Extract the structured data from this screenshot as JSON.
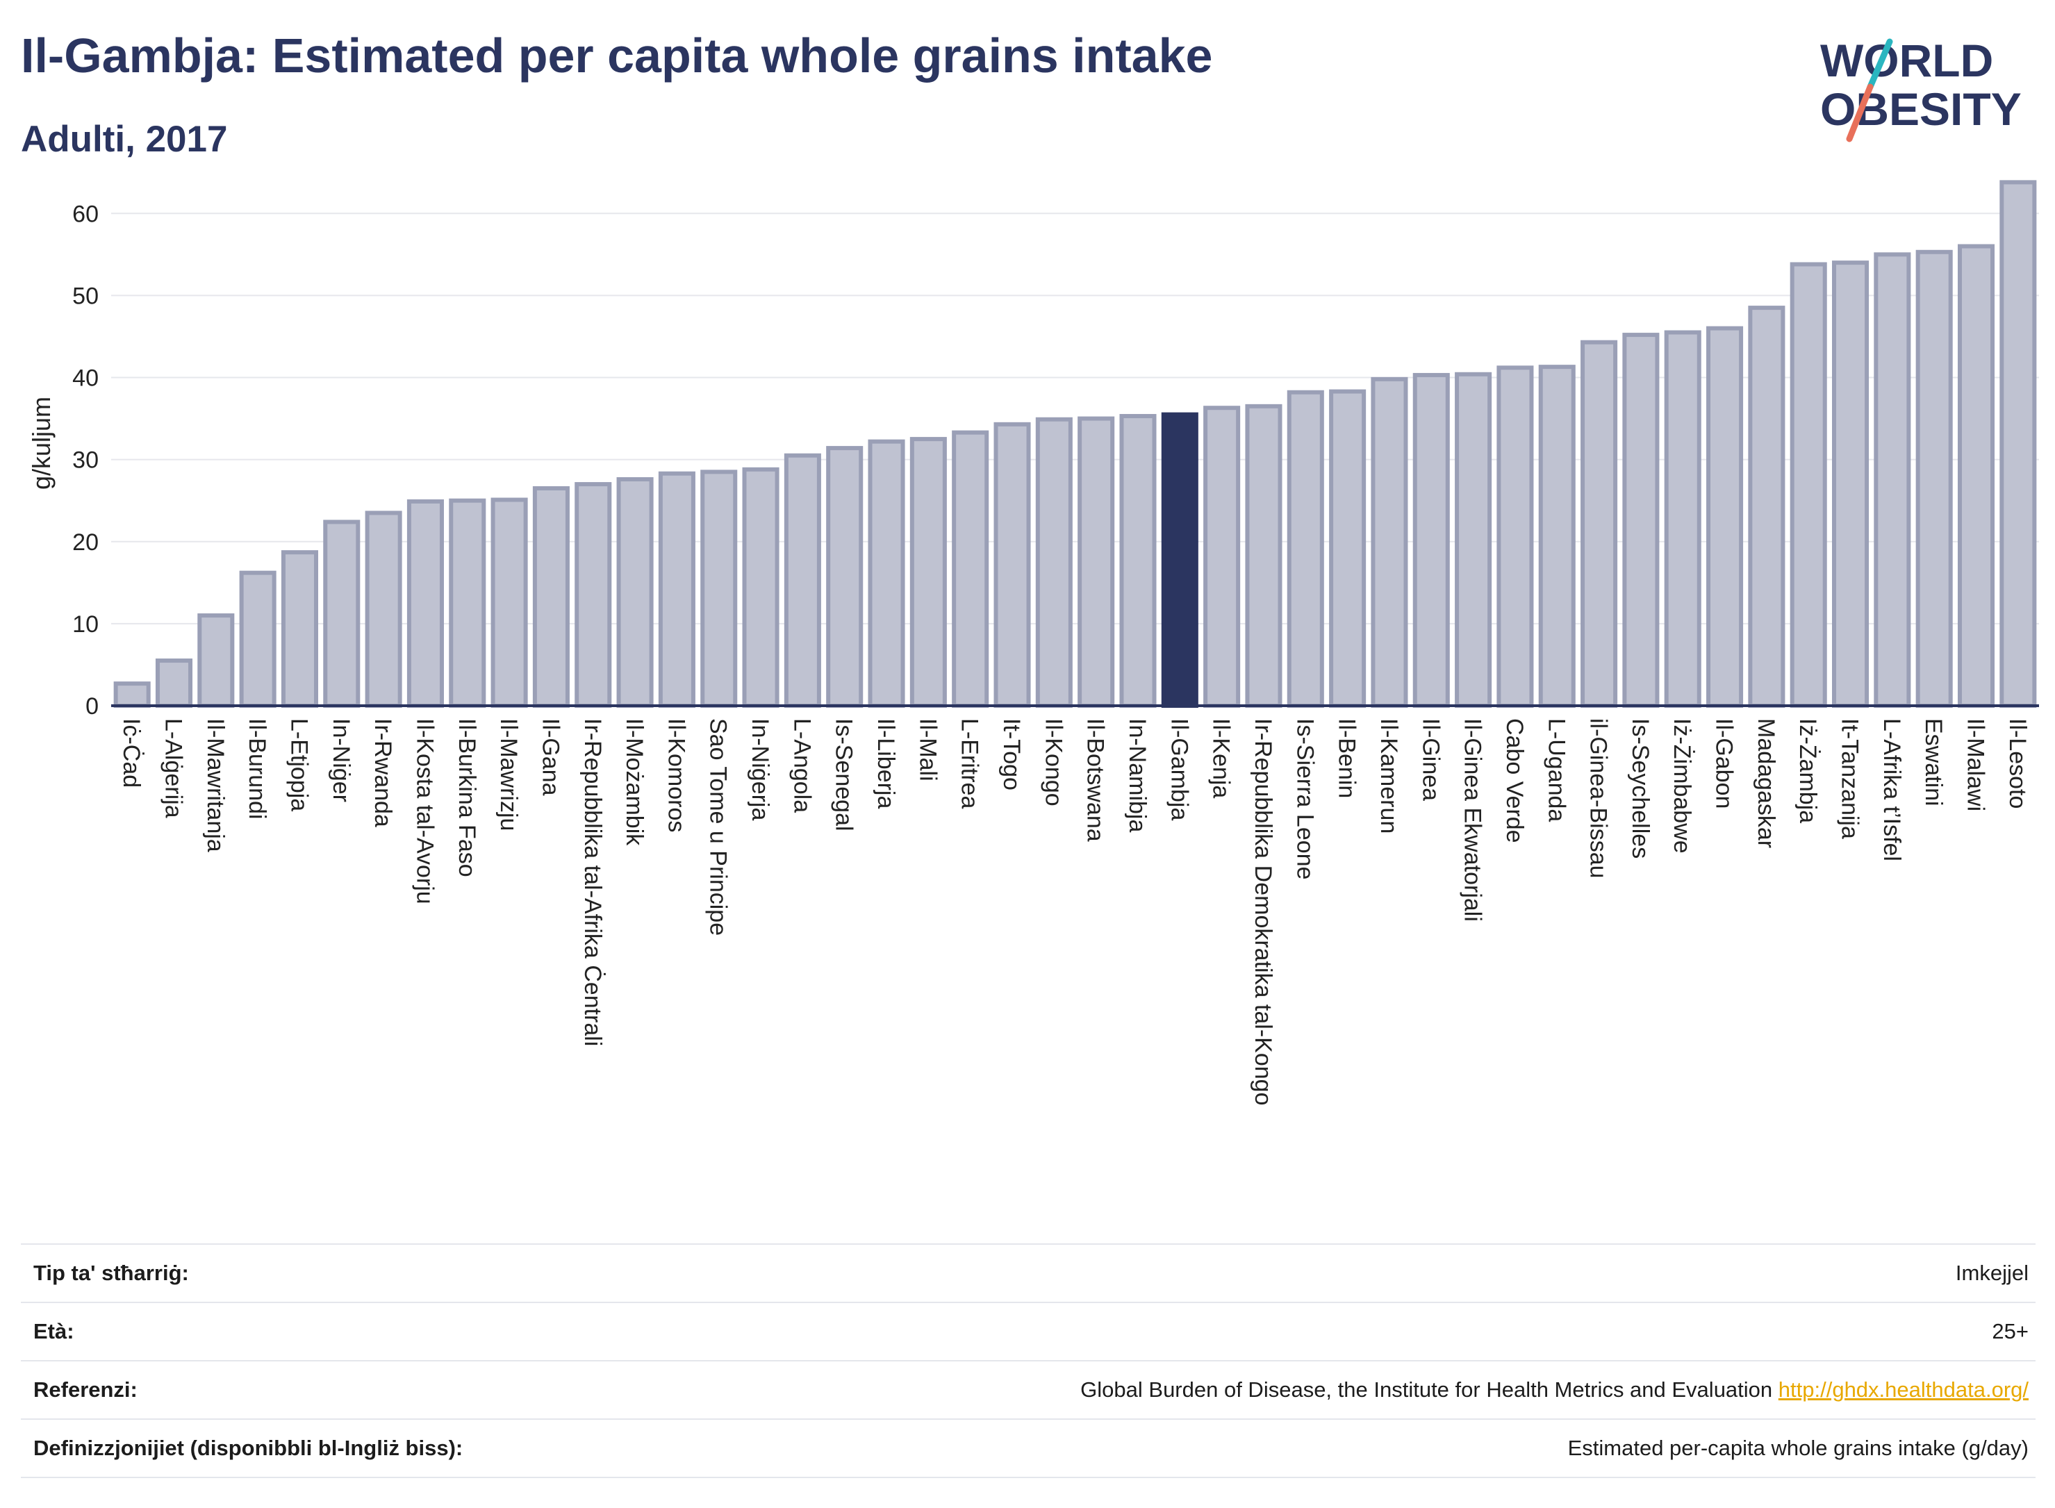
{
  "header": {
    "title": "Il-Gambja: Estimated per capita whole grains intake",
    "subtitle": "Adulti, 2017"
  },
  "logo": {
    "line1": "WORLD",
    "line2": "OBESITY"
  },
  "colors": {
    "bar": "#bfc2d1",
    "bar_border": "#9a9fb6",
    "highlight": "#2b3560",
    "axis": "#2b3560",
    "grid": "#e6e7ec",
    "logo_slash_teal": "#2bb6c0",
    "logo_slash_coral": "#e8705a",
    "link": "#e8a800"
  },
  "chart_data": {
    "type": "bar",
    "ylabel": "g/kuljum",
    "ylim": [
      0,
      64
    ],
    "yticks": [
      0,
      10,
      20,
      30,
      40,
      50,
      60
    ],
    "grid": true,
    "highlight": "Il-Gambja",
    "categories": [
      "Iċ-Ċad",
      "L-Alġerija",
      "Il-Mawritanja",
      "Il-Burundi",
      "L-Etjopja",
      "In-Niġer",
      "Ir-Rwanda",
      "Il-Kosta tal-Avorju",
      "Il-Burkina Faso",
      "Il-Mawrizju",
      "Il-Gana",
      "Ir-Repubblika tal-Afrika Ċentrali",
      "Il-Możambik",
      "Il-Komoros",
      "Sao Tome u Principe",
      "In-Niġerja",
      "L-Angola",
      "Is-Senegal",
      "Il-Liberja",
      "Il-Mali",
      "L-Eritrea",
      "It-Togo",
      "Il-Kongo",
      "Il-Botswana",
      "In-Namibja",
      "Il-Gambja",
      "Il-Kenja",
      "Ir-Repubblika Demokratika tal-Kongo",
      "Is-Sierra Leone",
      "Il-Benin",
      "Il-Kamerun",
      "Il-Ginea",
      "Il-Ginea Ekwatorjali",
      "Cabo Verde",
      "L-Uganda",
      "il-Ginea-Bissau",
      "Is-Seychelles",
      "Iż-Żimbabwe",
      "Il-Gabon",
      "Madagaskar",
      "Iż-Żambja",
      "It-Tanzanija",
      "L-Afrika t’Isfel",
      "Eswatini",
      "Il-Malawi",
      "Il-Lesoto"
    ],
    "values": [
      2.7,
      5.5,
      11.0,
      16.2,
      18.7,
      22.4,
      23.5,
      24.9,
      25.0,
      25.1,
      26.5,
      27.0,
      27.6,
      28.3,
      28.5,
      28.8,
      30.5,
      31.4,
      32.2,
      32.5,
      33.3,
      34.3,
      34.9,
      35.0,
      35.3,
      35.5,
      36.3,
      36.5,
      38.2,
      38.3,
      39.8,
      40.3,
      40.4,
      41.2,
      41.3,
      44.3,
      45.2,
      45.5,
      46.0,
      48.5,
      53.8,
      54.0,
      55.0,
      55.3,
      56.0,
      63.8
    ]
  },
  "info": {
    "rows": [
      {
        "label": "Tip ta' stħarriġ:",
        "value": "Imkejjel"
      },
      {
        "label": "Età:",
        "value": "25+"
      },
      {
        "label": "Referenzi:",
        "value": "Global Burden of Disease, the Institute for Health Metrics and Evaluation",
        "link": "http://ghdx.healthdata.org/"
      },
      {
        "label": "Definizzjonijiet (disponibbli bl-Ingliż biss):",
        "value": "Estimated per-capita whole grains intake (g/day)"
      }
    ]
  }
}
